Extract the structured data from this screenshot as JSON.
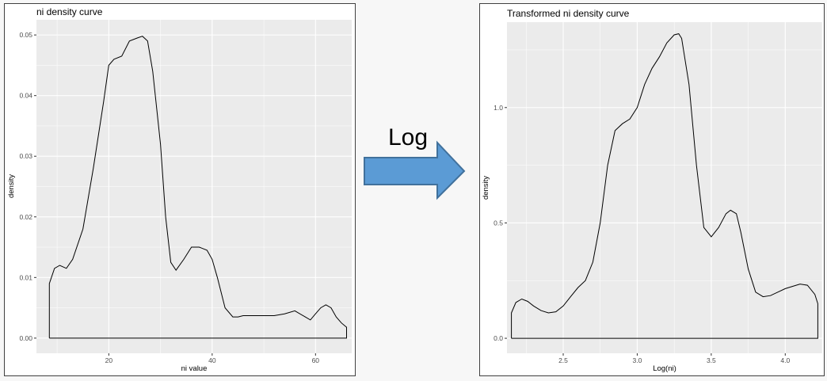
{
  "arrow": {
    "label": "Log",
    "fill": "#5b9bd5",
    "stroke": "#41719c"
  },
  "theme": {
    "panel_bg": "#ebebeb",
    "grid": "#ffffff",
    "line": "#000000"
  },
  "chart_data": [
    {
      "type": "line",
      "title": "ni density curve",
      "xlabel": "ni value",
      "ylabel": "density",
      "xlim": [
        6,
        67
      ],
      "ylim": [
        -0.0025,
        0.0525
      ],
      "xticks": [
        20,
        40,
        60
      ],
      "xtick_labels": [
        "20",
        "40",
        "60"
      ],
      "yticks": [
        0.0,
        0.01,
        0.02,
        0.03,
        0.04,
        0.05
      ],
      "ytick_labels": [
        "0.00",
        "0.01",
        "0.02",
        "0.03",
        "0.04",
        "0.05"
      ],
      "grid": true,
      "x": [
        8.5,
        8.5,
        9.5,
        10.5,
        11.8,
        13,
        15,
        17,
        19,
        20,
        21,
        22.5,
        24,
        25.5,
        26.5,
        27.5,
        28.5,
        30,
        31,
        32,
        33,
        34.5,
        36,
        37.5,
        39,
        40,
        41,
        42.5,
        44,
        45,
        46,
        48,
        50,
        52,
        54,
        56,
        58,
        59,
        60,
        61,
        62,
        63,
        64,
        65,
        66,
        66,
        8.5
      ],
      "y": [
        0.0,
        0.009,
        0.0115,
        0.012,
        0.0115,
        0.013,
        0.018,
        0.028,
        0.039,
        0.045,
        0.046,
        0.0465,
        0.049,
        0.0495,
        0.0498,
        0.049,
        0.044,
        0.032,
        0.02,
        0.0125,
        0.0112,
        0.013,
        0.015,
        0.015,
        0.0145,
        0.013,
        0.01,
        0.005,
        0.0035,
        0.0035,
        0.0037,
        0.0037,
        0.0037,
        0.0037,
        0.004,
        0.0045,
        0.0035,
        0.003,
        0.004,
        0.005,
        0.0055,
        0.005,
        0.0035,
        0.0025,
        0.0018,
        0.0,
        0.0
      ]
    },
    {
      "type": "line",
      "title": "Transformed ni density curve",
      "xlabel": "Log(ni)",
      "ylabel": "density",
      "xlim": [
        2.12,
        4.25
      ],
      "ylim": [
        -0.065,
        1.37
      ],
      "xticks": [
        2.5,
        3.0,
        3.5,
        4.0
      ],
      "xtick_labels": [
        "2.5",
        "3.0",
        "3.5",
        "4.0"
      ],
      "yticks": [
        0.0,
        0.5,
        1.0
      ],
      "ytick_labels": [
        "0.0",
        "0.5",
        "1.0"
      ],
      "grid": true,
      "x": [
        2.15,
        2.15,
        2.18,
        2.22,
        2.26,
        2.3,
        2.35,
        2.4,
        2.45,
        2.5,
        2.55,
        2.6,
        2.65,
        2.7,
        2.75,
        2.8,
        2.85,
        2.9,
        2.95,
        3.0,
        3.05,
        3.1,
        3.15,
        3.2,
        3.25,
        3.28,
        3.3,
        3.35,
        3.4,
        3.45,
        3.5,
        3.55,
        3.6,
        3.63,
        3.67,
        3.7,
        3.75,
        3.8,
        3.85,
        3.9,
        3.95,
        4.0,
        4.05,
        4.1,
        4.15,
        4.2,
        4.22,
        4.22,
        2.15
      ],
      "y": [
        0.0,
        0.11,
        0.155,
        0.17,
        0.16,
        0.14,
        0.12,
        0.11,
        0.115,
        0.14,
        0.18,
        0.22,
        0.25,
        0.33,
        0.5,
        0.75,
        0.9,
        0.93,
        0.95,
        1.0,
        1.1,
        1.17,
        1.22,
        1.28,
        1.315,
        1.32,
        1.3,
        1.1,
        0.75,
        0.48,
        0.44,
        0.48,
        0.54,
        0.555,
        0.54,
        0.46,
        0.3,
        0.2,
        0.18,
        0.185,
        0.2,
        0.215,
        0.225,
        0.235,
        0.23,
        0.19,
        0.15,
        0.0,
        0.0
      ]
    }
  ]
}
